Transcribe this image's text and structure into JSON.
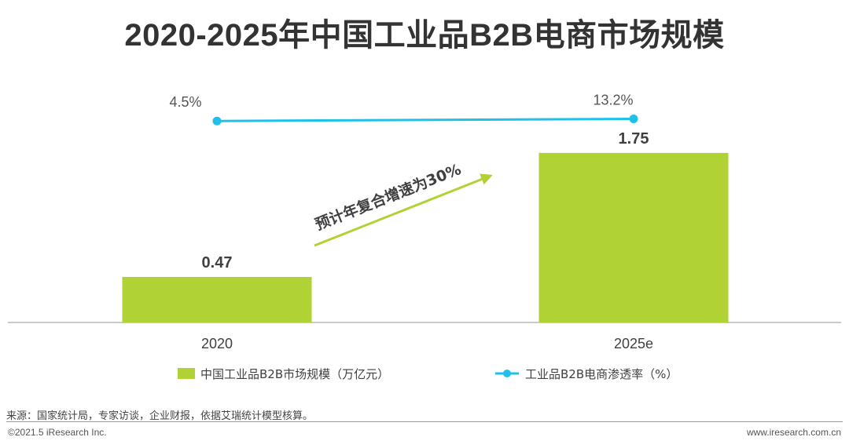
{
  "title": "2020-2025年中国工业品B2B电商市场规模",
  "chart_data": {
    "type": "bar",
    "categories": [
      "2020",
      "2025e"
    ],
    "series": [
      {
        "name": "中国工业品B2B市场规模（万亿元）",
        "type": "bar",
        "color": "#b0d235",
        "values": [
          0.47,
          1.75
        ],
        "labels": [
          "0.47",
          "1.75"
        ]
      },
      {
        "name": "工业品B2B电商渗透率（%）",
        "type": "line",
        "color": "#1fc1ea",
        "values": [
          4.5,
          13.2
        ],
        "labels": [
          "4.5%",
          "13.2%"
        ]
      }
    ],
    "annotation": "预计年复合增速为30%"
  },
  "source": "来源：国家统计局，专家访谈，企业财报，依据艾瑞统计模型核算。",
  "copyright": "©2021.5 iResearch Inc.",
  "website": "www.iresearch.com.cn"
}
